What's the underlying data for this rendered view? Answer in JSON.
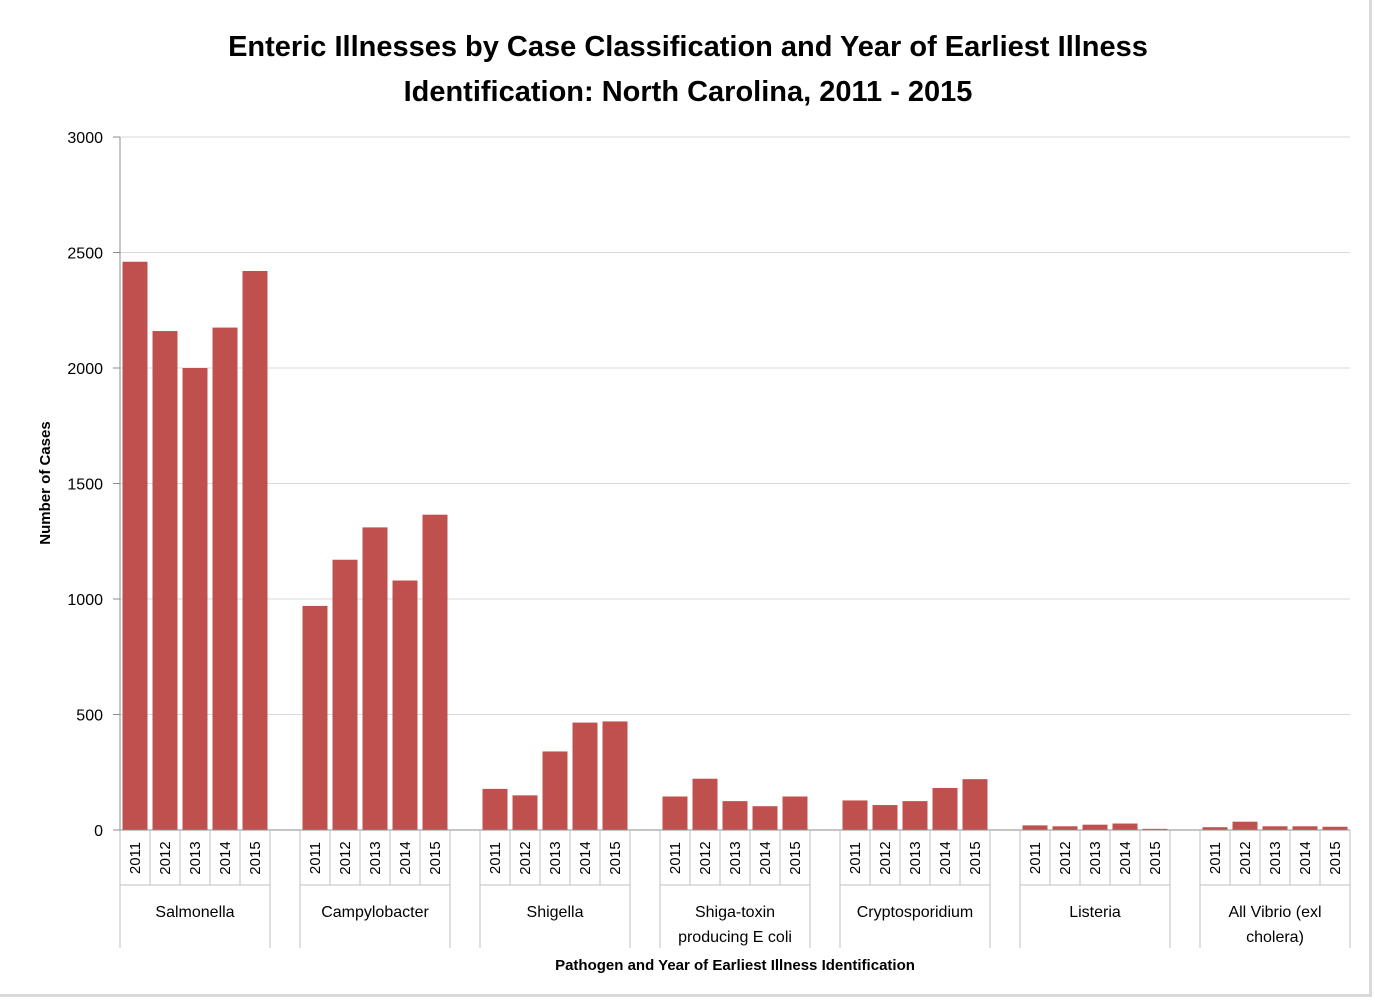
{
  "chart_data": {
    "type": "bar",
    "title_lines": [
      "Enteric Illnesses by Case Classification and Year of Earliest Illness",
      "Identification: North Carolina, 2011 - 2015"
    ],
    "xlabel": "Pathogen and Year of Earliest Illness Identification",
    "ylabel": "Number of Cases",
    "ylim": [
      0,
      3000
    ],
    "yticks": [
      0,
      500,
      1000,
      1500,
      2000,
      2500,
      3000
    ],
    "grid": true,
    "legend": "none",
    "bar_color": "#c0504d",
    "years": [
      "2011",
      "2012",
      "2013",
      "2014",
      "2015"
    ],
    "groups": [
      {
        "name_lines": [
          "Salmonella"
        ],
        "values": [
          2460,
          2160,
          2000,
          2175,
          2420
        ]
      },
      {
        "name_lines": [
          "Campylobacter"
        ],
        "values": [
          970,
          1170,
          1310,
          1080,
          1365
        ]
      },
      {
        "name_lines": [
          "Shigella"
        ],
        "values": [
          178,
          150,
          340,
          465,
          470
        ]
      },
      {
        "name_lines": [
          "Shiga-toxin",
          "producing E coli"
        ],
        "values": [
          145,
          222,
          125,
          103,
          145
        ]
      },
      {
        "name_lines": [
          "Cryptosporidium"
        ],
        "values": [
          128,
          108,
          125,
          182,
          220
        ]
      },
      {
        "name_lines": [
          "Listeria"
        ],
        "values": [
          20,
          16,
          23,
          28,
          5
        ]
      },
      {
        "name_lines": [
          "All Vibrio (exl",
          "cholera)"
        ],
        "values": [
          12,
          36,
          16,
          16,
          14
        ]
      }
    ]
  }
}
